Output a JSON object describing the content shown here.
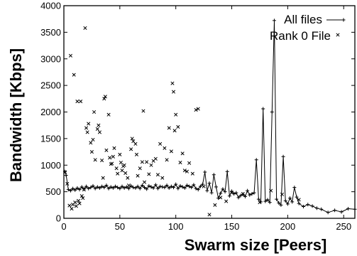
{
  "chart_data": {
    "type": "line",
    "xlabel": "Swarm size [Peers]",
    "ylabel": "Bandwidth [Kbps]",
    "xlim": [
      0,
      260
    ],
    "ylim": [
      0,
      4000
    ],
    "x_ticks": [
      "0",
      "50",
      "100",
      "150",
      "200",
      "250"
    ],
    "y_ticks": [
      "0",
      "500",
      "1000",
      "1500",
      "2000",
      "2500",
      "3000",
      "3500",
      "4000"
    ],
    "grid": false,
    "legend_position": "top-right",
    "series": [
      {
        "name": "All files",
        "type": "line",
        "marker": "plus",
        "x": [
          1,
          2,
          4,
          6,
          8,
          10,
          12,
          14,
          16,
          18,
          20,
          22,
          24,
          26,
          28,
          30,
          32,
          34,
          36,
          38,
          40,
          42,
          44,
          46,
          48,
          50,
          52,
          54,
          56,
          58,
          60,
          62,
          64,
          66,
          68,
          70,
          72,
          74,
          76,
          78,
          80,
          82,
          84,
          86,
          88,
          90,
          92,
          94,
          96,
          98,
          100,
          102,
          104,
          106,
          108,
          110,
          112,
          114,
          116,
          118,
          120,
          122,
          124,
          126,
          128,
          130,
          132,
          134,
          136,
          138,
          140,
          142,
          144,
          146,
          148,
          150,
          152,
          154,
          156,
          158,
          160,
          162,
          164,
          166,
          168,
          170,
          172,
          174,
          176,
          178,
          180,
          182,
          184,
          186,
          188,
          190,
          192,
          194,
          196,
          198,
          200,
          202,
          204,
          206,
          208,
          210,
          214,
          218,
          222,
          226,
          230,
          236,
          242,
          248,
          254,
          260
        ],
        "values": [
          880,
          810,
          540,
          520,
          560,
          530,
          570,
          540,
          590,
          550,
          600,
          560,
          580,
          610,
          560,
          590,
          570,
          600,
          580,
          620,
          560,
          590,
          570,
          600,
          580,
          560,
          600,
          570,
          590,
          560,
          610,
          580,
          570,
          600,
          560,
          620,
          580,
          550,
          610,
          590,
          570,
          630,
          560,
          600,
          590,
          580,
          620,
          570,
          600,
          580,
          640,
          560,
          610,
          590,
          570,
          620,
          600,
          580,
          630,
          560,
          540,
          600,
          640,
          870,
          520,
          660,
          480,
          820,
          590,
          380,
          470,
          550,
          500,
          880,
          420,
          510,
          460,
          480,
          390,
          430,
          450,
          410,
          520,
          440,
          460,
          480,
          1100,
          360,
          310,
          2060,
          320,
          350,
          300,
          2000,
          3720,
          360,
          290,
          250,
          1160,
          330,
          270,
          380,
          310,
          580,
          400,
          280,
          220,
          260,
          230,
          190,
          170,
          110,
          150,
          120,
          180,
          170
        ]
      },
      {
        "name": "Rank 0 File",
        "type": "scatter",
        "marker": "x",
        "x": [
          1,
          3,
          5,
          6,
          7,
          8,
          9,
          10,
          11,
          12,
          13,
          14,
          15,
          16,
          17,
          18,
          19,
          20,
          21,
          22,
          24,
          25,
          26,
          27,
          28,
          30,
          31,
          32,
          34,
          35,
          36,
          37,
          38,
          40,
          41,
          42,
          43,
          44,
          45,
          47,
          48,
          50,
          51,
          52,
          53,
          54,
          55,
          57,
          58,
          60,
          61,
          62,
          64,
          65,
          66,
          68,
          70,
          71,
          72,
          74,
          76,
          78,
          80,
          82,
          84,
          86,
          88,
          90,
          92,
          94,
          96,
          97,
          98,
          99,
          100,
          102,
          104,
          106,
          108,
          110,
          112,
          115,
          118,
          120,
          125,
          130,
          135,
          140,
          145,
          150,
          160,
          175,
          185,
          195,
          210
        ],
        "values": [
          870,
          650,
          240,
          3060,
          180,
          260,
          2700,
          300,
          230,
          2200,
          330,
          280,
          2200,
          420,
          380,
          540,
          3580,
          1700,
          1620,
          1780,
          1420,
          1250,
          1480,
          2000,
          1100,
          1680,
          1750,
          1620,
          1090,
          760,
          2250,
          2290,
          1280,
          1950,
          1140,
          1020,
          1030,
          1160,
          1320,
          940,
          840,
          1200,
          1050,
          900,
          980,
          1000,
          850,
          760,
          620,
          1300,
          1500,
          1450,
          1400,
          1200,
          800,
          940,
          1060,
          2020,
          680,
          1060,
          830,
          1000,
          1080,
          1120,
          820,
          1400,
          760,
          1320,
          1100,
          1700,
          1260,
          2540,
          2380,
          1650,
          1950,
          1720,
          1050,
          1220,
          900,
          880,
          1040,
          840,
          2040,
          2060,
          600,
          70,
          250,
          390,
          320,
          480,
          460,
          300,
          520,
          450,
          350
        ]
      }
    ]
  }
}
